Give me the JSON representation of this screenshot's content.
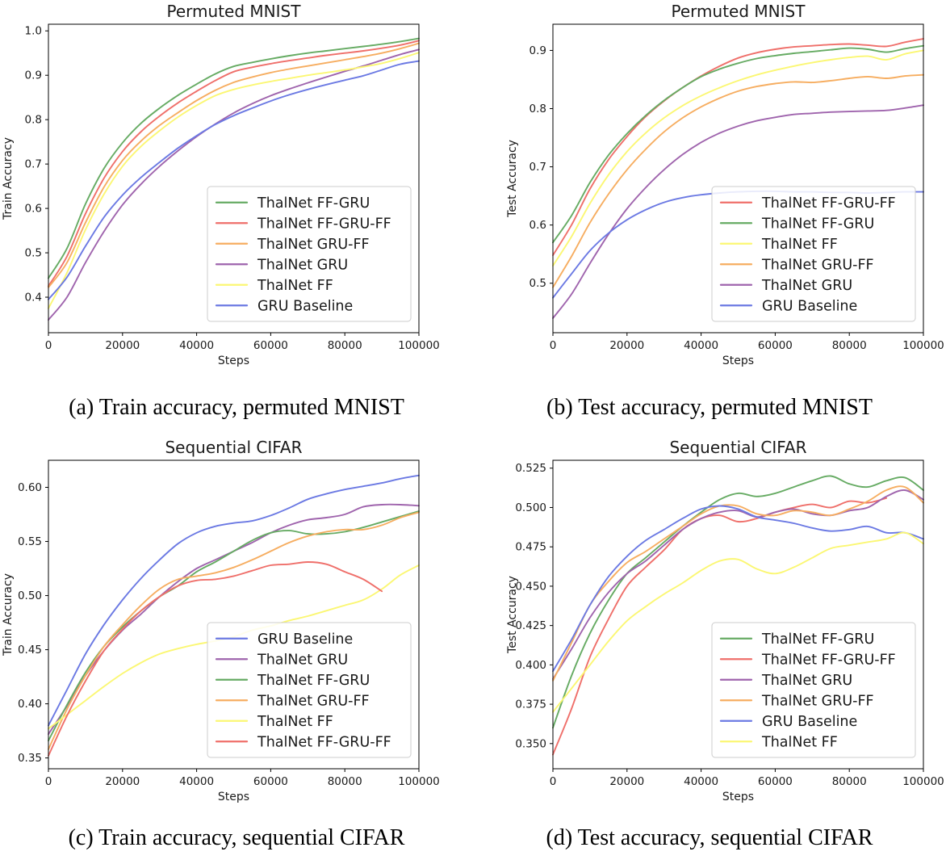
{
  "figure": {
    "background": "#ffffff",
    "captions": {
      "a": "(a) Train accuracy, permuted MNIST",
      "b": "(b) Test accuracy, permuted MNIST",
      "c": "(c) Train accuracy, sequential CIFAR",
      "d": "(d) Test accuracy, sequential CIFAR"
    }
  },
  "colors": {
    "ThalNet FF-GRU": "#66ab63",
    "ThalNet FF-GRU-FF": "#ef6f6a",
    "ThalNet GRU-FF": "#f6ad60",
    "ThalNet GRU": "#9f64ad",
    "ThalNet FF": "#fbf773",
    "GRU Baseline": "#6b79e3"
  },
  "chart_data": [
    {
      "type": "line",
      "title": "Permuted MNIST",
      "xlabel": "Steps",
      "ylabel": "Train Accuracy",
      "grid": false,
      "legend_position": "lower right",
      "x": [
        0,
        5000,
        10000,
        15000,
        20000,
        25000,
        30000,
        35000,
        40000,
        45000,
        50000,
        55000,
        60000,
        65000,
        70000,
        75000,
        80000,
        85000,
        90000,
        95000,
        100000
      ],
      "xlim": [
        0,
        100000
      ],
      "ylim": [
        0.32,
        1.015
      ],
      "xticks": {
        "values": [
          0,
          20000,
          40000,
          60000,
          80000,
          100000
        ],
        "labels": [
          "0",
          "20000",
          "40000",
          "60000",
          "80000",
          "100000"
        ]
      },
      "yticks": {
        "values": [
          0.4,
          0.5,
          0.6,
          0.7,
          0.8,
          0.9,
          1.0
        ],
        "labels": [
          "0.4",
          "0.5",
          "0.6",
          "0.7",
          "0.8",
          "0.9",
          "1.0"
        ]
      },
      "series": [
        {
          "name": "ThalNet FF-GRU",
          "values": [
            0.443,
            0.51,
            0.61,
            0.69,
            0.748,
            0.792,
            0.826,
            0.855,
            0.88,
            0.903,
            0.92,
            0.929,
            0.937,
            0.944,
            0.95,
            0.955,
            0.96,
            0.965,
            0.97,
            0.976,
            0.983
          ]
        },
        {
          "name": "ThalNet FF-GRU-FF",
          "values": [
            0.425,
            0.492,
            0.588,
            0.668,
            0.728,
            0.773,
            0.808,
            0.838,
            0.864,
            0.888,
            0.908,
            0.918,
            0.926,
            0.933,
            0.939,
            0.945,
            0.95,
            0.955,
            0.961,
            0.968,
            0.978
          ]
        },
        {
          "name": "ThalNet GRU-FF",
          "values": [
            0.422,
            0.478,
            0.568,
            0.648,
            0.708,
            0.752,
            0.787,
            0.816,
            0.843,
            0.866,
            0.884,
            0.896,
            0.906,
            0.914,
            0.921,
            0.928,
            0.935,
            0.942,
            0.95,
            0.96,
            0.972
          ]
        },
        {
          "name": "ThalNet GRU",
          "values": [
            0.349,
            0.4,
            0.478,
            0.548,
            0.608,
            0.655,
            0.695,
            0.73,
            0.762,
            0.79,
            0.815,
            0.836,
            0.854,
            0.869,
            0.883,
            0.896,
            0.909,
            0.921,
            0.934,
            0.947,
            0.958
          ]
        },
        {
          "name": "ThalNet FF",
          "values": [
            0.375,
            0.455,
            0.552,
            0.632,
            0.695,
            0.74,
            0.775,
            0.806,
            0.832,
            0.854,
            0.868,
            0.878,
            0.886,
            0.893,
            0.9,
            0.906,
            0.912,
            0.919,
            0.927,
            0.938,
            0.951
          ]
        },
        {
          "name": "GRU Baseline",
          "values": [
            0.395,
            0.445,
            0.515,
            0.58,
            0.63,
            0.67,
            0.704,
            0.736,
            0.764,
            0.789,
            0.809,
            0.826,
            0.842,
            0.856,
            0.868,
            0.879,
            0.889,
            0.899,
            0.912,
            0.925,
            0.932
          ]
        }
      ]
    },
    {
      "type": "line",
      "title": "Permuted MNIST",
      "xlabel": "Steps",
      "ylabel": "Test Accuracy",
      "grid": false,
      "legend_position": "lower right",
      "x": [
        0,
        5000,
        10000,
        15000,
        20000,
        25000,
        30000,
        35000,
        40000,
        45000,
        50000,
        55000,
        60000,
        65000,
        70000,
        75000,
        80000,
        85000,
        90000,
        95000,
        100000
      ],
      "xlim": [
        0,
        100000
      ],
      "ylim": [
        0.415,
        0.945
      ],
      "xticks": {
        "values": [
          0,
          20000,
          40000,
          60000,
          80000,
          100000
        ],
        "labels": [
          "0",
          "20000",
          "40000",
          "60000",
          "80000",
          "100000"
        ]
      },
      "yticks": {
        "values": [
          0.5,
          0.6,
          0.7,
          0.8,
          0.9
        ],
        "labels": [
          "0.5",
          "0.6",
          "0.7",
          "0.8",
          "0.9"
        ]
      },
      "series": [
        {
          "name": "ThalNet FF-GRU-FF",
          "values": [
            0.548,
            0.6,
            0.662,
            0.712,
            0.752,
            0.786,
            0.813,
            0.836,
            0.856,
            0.873,
            0.887,
            0.896,
            0.902,
            0.906,
            0.908,
            0.91,
            0.911,
            0.909,
            0.907,
            0.914,
            0.92
          ]
        },
        {
          "name": "ThalNet FF-GRU",
          "values": [
            0.57,
            0.616,
            0.673,
            0.72,
            0.757,
            0.788,
            0.814,
            0.836,
            0.855,
            0.868,
            0.878,
            0.886,
            0.891,
            0.895,
            0.898,
            0.901,
            0.904,
            0.902,
            0.897,
            0.903,
            0.908
          ]
        },
        {
          "name": "ThalNet FF",
          "values": [
            0.53,
            0.58,
            0.637,
            0.686,
            0.726,
            0.758,
            0.784,
            0.805,
            0.822,
            0.836,
            0.848,
            0.858,
            0.866,
            0.873,
            0.879,
            0.884,
            0.888,
            0.89,
            0.884,
            0.894,
            0.9
          ]
        },
        {
          "name": "ThalNet GRU-FF",
          "values": [
            0.493,
            0.546,
            0.604,
            0.653,
            0.695,
            0.73,
            0.76,
            0.784,
            0.803,
            0.818,
            0.83,
            0.838,
            0.843,
            0.846,
            0.845,
            0.848,
            0.852,
            0.855,
            0.852,
            0.856,
            0.858
          ]
        },
        {
          "name": "ThalNet GRU",
          "values": [
            0.44,
            0.481,
            0.534,
            0.584,
            0.628,
            0.664,
            0.695,
            0.721,
            0.742,
            0.758,
            0.77,
            0.779,
            0.785,
            0.79,
            0.792,
            0.794,
            0.795,
            0.796,
            0.797,
            0.801,
            0.806
          ]
        },
        {
          "name": "GRU Baseline",
          "values": [
            0.475,
            0.516,
            0.556,
            0.586,
            0.609,
            0.626,
            0.639,
            0.647,
            0.652,
            0.655,
            0.657,
            0.658,
            0.658,
            0.657,
            0.657,
            0.656,
            0.656,
            0.655,
            0.656,
            0.657,
            0.657
          ]
        }
      ]
    },
    {
      "type": "line",
      "title": "Sequential CIFAR",
      "xlabel": "Steps",
      "ylabel": "Train Accuracy",
      "grid": false,
      "legend_position": "lower right",
      "x": [
        0,
        5000,
        10000,
        15000,
        20000,
        25000,
        30000,
        35000,
        40000,
        45000,
        50000,
        55000,
        60000,
        65000,
        70000,
        75000,
        80000,
        85000,
        90000,
        95000,
        100000
      ],
      "xlim": [
        0,
        100000
      ],
      "ylim": [
        0.34,
        0.625
      ],
      "xticks": {
        "values": [
          0,
          20000,
          40000,
          60000,
          80000,
          100000
        ],
        "labels": [
          "0",
          "20000",
          "40000",
          "60000",
          "80000",
          "100000"
        ]
      },
      "yticks": {
        "values": [
          0.35,
          0.4,
          0.45,
          0.5,
          0.55,
          0.6
        ],
        "labels": [
          "0.35",
          "0.40",
          "0.45",
          "0.50",
          "0.55",
          "0.60"
        ]
      },
      "series": [
        {
          "name": "GRU Baseline",
          "values": [
            0.38,
            0.413,
            0.446,
            0.473,
            0.496,
            0.516,
            0.533,
            0.548,
            0.558,
            0.564,
            0.567,
            0.569,
            0.574,
            0.581,
            0.589,
            0.594,
            0.598,
            0.601,
            0.604,
            0.608,
            0.611
          ]
        },
        {
          "name": "ThalNet GRU",
          "values": [
            0.372,
            0.398,
            0.426,
            0.449,
            0.468,
            0.483,
            0.499,
            0.513,
            0.525,
            0.533,
            0.541,
            0.549,
            0.558,
            0.565,
            0.57,
            0.572,
            0.575,
            0.582,
            0.584,
            0.584,
            0.583
          ]
        },
        {
          "name": "ThalNet FF-GRU",
          "values": [
            0.366,
            0.399,
            0.429,
            0.453,
            0.471,
            0.486,
            0.499,
            0.509,
            0.522,
            0.531,
            0.541,
            0.551,
            0.558,
            0.56,
            0.557,
            0.557,
            0.559,
            0.563,
            0.568,
            0.573,
            0.578
          ]
        },
        {
          "name": "ThalNet GRU-FF",
          "values": [
            0.358,
            0.395,
            0.426,
            0.453,
            0.473,
            0.491,
            0.506,
            0.515,
            0.518,
            0.521,
            0.526,
            0.533,
            0.541,
            0.549,
            0.555,
            0.559,
            0.561,
            0.561,
            0.565,
            0.572,
            0.577
          ]
        },
        {
          "name": "ThalNet FF",
          "values": [
            0.377,
            0.39,
            0.403,
            0.416,
            0.428,
            0.438,
            0.446,
            0.451,
            0.455,
            0.458,
            0.462,
            0.468,
            0.472,
            0.477,
            0.481,
            0.486,
            0.491,
            0.496,
            0.506,
            0.519,
            0.528
          ]
        },
        {
          "name": "ThalNet FF-GRU-FF",
          "values": [
            0.352,
            0.389,
            0.421,
            0.449,
            0.469,
            0.486,
            0.499,
            0.509,
            0.514,
            0.515,
            0.518,
            0.523,
            0.528,
            0.529,
            0.531,
            0.529,
            0.522,
            0.515,
            0.504,
            null,
            null
          ]
        }
      ]
    },
    {
      "type": "line",
      "title": "Sequential CIFAR",
      "xlabel": "Steps",
      "ylabel": "Test Accuracy",
      "grid": false,
      "legend_position": "lower right",
      "x": [
        0,
        5000,
        10000,
        15000,
        20000,
        25000,
        30000,
        35000,
        40000,
        45000,
        50000,
        55000,
        60000,
        65000,
        70000,
        75000,
        80000,
        85000,
        90000,
        95000,
        100000
      ],
      "xlim": [
        0,
        100000
      ],
      "ylim": [
        0.334,
        0.53
      ],
      "xticks": {
        "values": [
          0,
          20000,
          40000,
          60000,
          80000,
          100000
        ],
        "labels": [
          "0",
          "20000",
          "40000",
          "60000",
          "80000",
          "100000"
        ]
      },
      "yticks": {
        "values": [
          0.35,
          0.375,
          0.4,
          0.425,
          0.45,
          0.475,
          0.5,
          0.525
        ],
        "labels": [
          "0.350",
          "0.375",
          "0.400",
          "0.425",
          "0.450",
          "0.475",
          "0.500",
          "0.525"
        ]
      },
      "series": [
        {
          "name": "ThalNet FF-GRU",
          "values": [
            0.36,
            0.393,
            0.42,
            0.441,
            0.458,
            0.468,
            0.478,
            0.488,
            0.497,
            0.505,
            0.509,
            0.507,
            0.509,
            0.513,
            0.517,
            0.52,
            0.515,
            0.513,
            0.517,
            0.519,
            0.511
          ]
        },
        {
          "name": "ThalNet FF-GRU-FF",
          "values": [
            0.343,
            0.372,
            0.405,
            0.429,
            0.45,
            0.462,
            0.473,
            0.486,
            0.493,
            0.495,
            0.491,
            0.493,
            0.497,
            0.5,
            0.502,
            0.5,
            0.504,
            0.503,
            0.506,
            null,
            null
          ]
        },
        {
          "name": "ThalNet GRU",
          "values": [
            0.391,
            0.41,
            0.43,
            0.446,
            0.458,
            0.466,
            0.476,
            0.486,
            0.493,
            0.497,
            0.498,
            0.494,
            0.497,
            0.499,
            0.496,
            0.495,
            0.498,
            0.5,
            0.507,
            0.511,
            0.505
          ]
        },
        {
          "name": "ThalNet GRU-FF",
          "values": [
            0.39,
            0.414,
            0.438,
            0.453,
            0.465,
            0.472,
            0.48,
            0.488,
            0.496,
            0.501,
            0.501,
            0.496,
            0.495,
            0.498,
            0.497,
            0.495,
            0.499,
            0.504,
            0.511,
            0.513,
            0.503
          ]
        },
        {
          "name": "GRU Baseline",
          "values": [
            0.396,
            0.416,
            0.438,
            0.456,
            0.469,
            0.479,
            0.486,
            0.493,
            0.499,
            0.501,
            0.499,
            0.494,
            0.492,
            0.49,
            0.487,
            0.485,
            0.486,
            0.488,
            0.484,
            0.484,
            0.48
          ]
        },
        {
          "name": "ThalNet FF",
          "values": [
            0.37,
            0.385,
            0.4,
            0.415,
            0.428,
            0.437,
            0.445,
            0.452,
            0.46,
            0.466,
            0.467,
            0.461,
            0.458,
            0.462,
            0.468,
            0.474,
            0.476,
            0.478,
            0.48,
            0.484,
            0.477
          ]
        }
      ]
    }
  ]
}
